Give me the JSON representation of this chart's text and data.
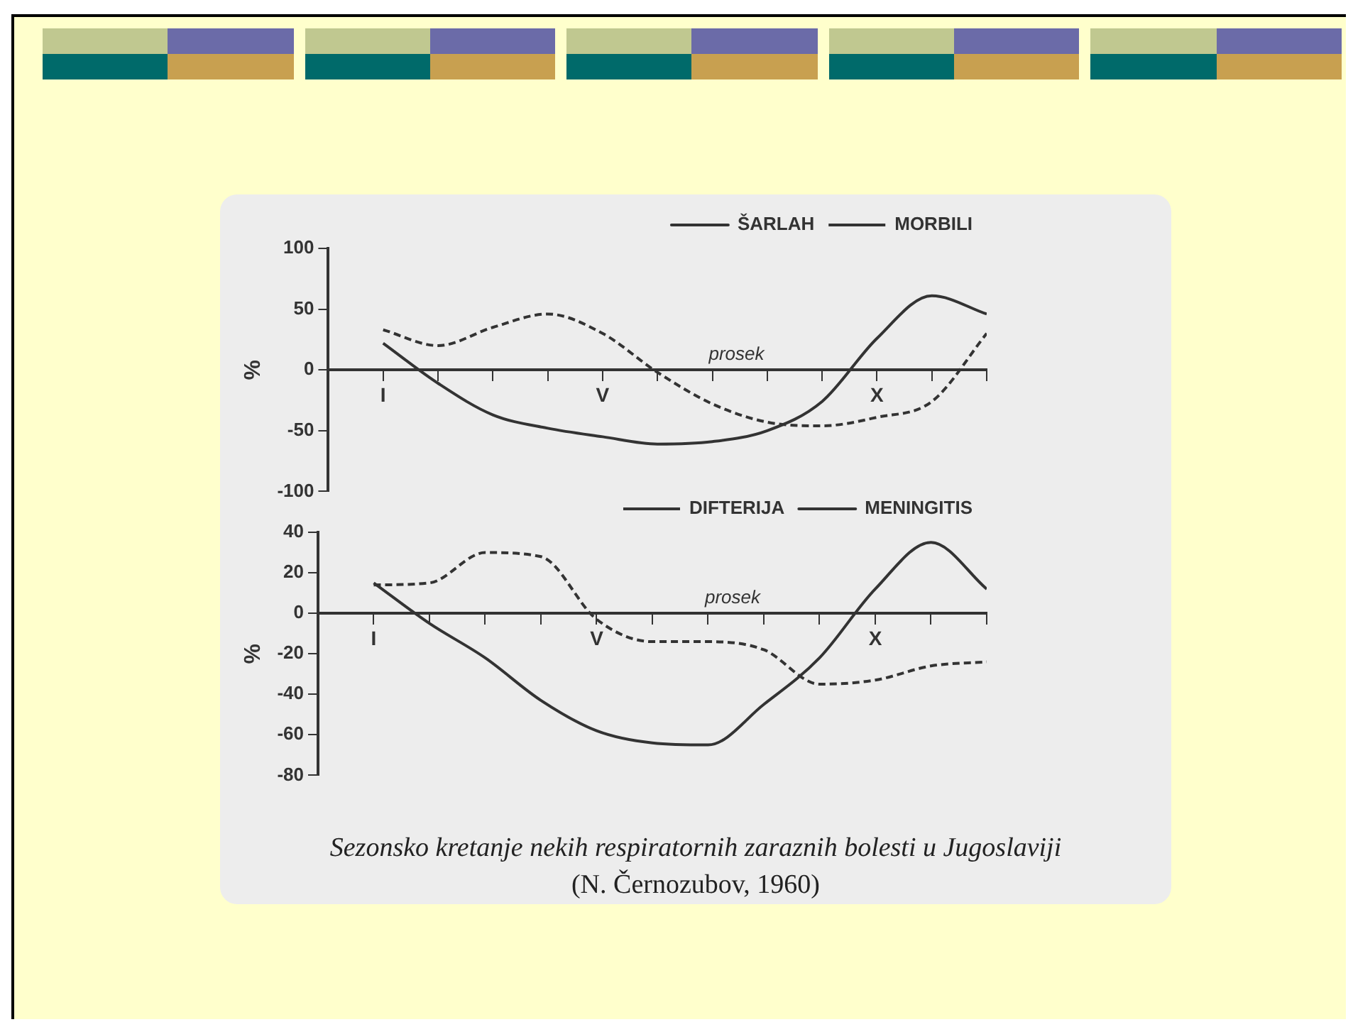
{
  "chart_data": [
    {
      "type": "line",
      "ylabel": "%",
      "categories": [
        "I",
        null,
        null,
        null,
        "V",
        null,
        null,
        null,
        null,
        "X",
        null,
        null
      ],
      "ylim": [
        -100,
        100
      ],
      "yticks": [
        -100,
        -50,
        0,
        50,
        100
      ],
      "grid": false,
      "legend": "top right",
      "marker": "none",
      "annotations": [
        "prosek"
      ],
      "series": [
        {
          "name": "ŠARLAH",
          "color": "#333333",
          "line_style": "solid",
          "values": [
            22,
            -11,
            -37,
            -48,
            -55,
            -61,
            -59,
            -50,
            -26,
            26,
            61,
            46
          ]
        },
        {
          "name": "MORBILI",
          "color": "#333333",
          "line_style": "dashed",
          "values": [
            33,
            20,
            35,
            46,
            30,
            -2,
            -28,
            -43,
            -46,
            -39,
            -26,
            30
          ]
        }
      ]
    },
    {
      "type": "line",
      "ylabel": "%",
      "categories": [
        "I",
        null,
        null,
        null,
        "V",
        null,
        null,
        null,
        null,
        "X",
        null,
        null
      ],
      "ylim": [
        -80,
        40
      ],
      "yticks": [
        -80,
        -60,
        -40,
        -20,
        0,
        20,
        40
      ],
      "grid": false,
      "legend": "top right",
      "marker": "none",
      "annotations": [
        "prosek",
        "Sezonsko kretanje nekih respiratornih zaraznih bolesti u Jugoslaviji",
        "(N. Černozubov, 1960)"
      ],
      "series": [
        {
          "name": "DIFTERIJA",
          "color": "#333333",
          "line_style": "dashed",
          "values": [
            14,
            15,
            30,
            28,
            -3,
            -14,
            -14,
            -18,
            -35,
            -33,
            -26,
            -24
          ]
        },
        {
          "name": "MENINGITIS",
          "color": "#333333",
          "line_style": "solid",
          "values": [
            15,
            -5,
            -22,
            -43,
            -58,
            -64,
            -65,
            -45,
            -22,
            12,
            35,
            12
          ]
        }
      ]
    }
  ]
}
